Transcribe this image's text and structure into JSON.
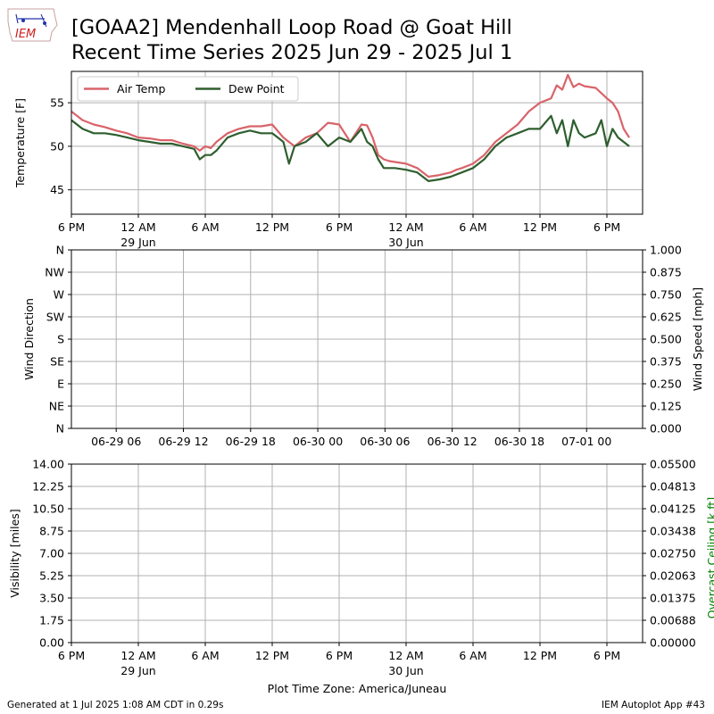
{
  "header": {
    "logo_text": "IEM",
    "title_line1": "[GOAA2] Mendenhall Loop Road @ Goat Hill",
    "title_line2": "Recent Time Series 2025 Jun 29 - 2025 Jul 1"
  },
  "footer": {
    "left": "Generated at 1 Jul 2025 1:08 AM CDT in 0.29s",
    "right": "IEM Autoplot App #43"
  },
  "colors": {
    "air_temp": "#d9636a",
    "dew_point": "#2e5e2e",
    "grid": "#b0b0b0",
    "ceiling_label": "#008000"
  },
  "chart_data": [
    {
      "type": "line",
      "ylabel": "Temperature [F]",
      "ylim": [
        42.2,
        58.6
      ],
      "yticks": [
        "45",
        "50",
        "55"
      ],
      "ytick_values": [
        45,
        50,
        55
      ],
      "x_start": "2025-06-28 18:00",
      "x_end": "2025-07-01 02:00",
      "xticks": [
        {
          "hour": 0,
          "label": "6 PM",
          "sub": ""
        },
        {
          "hour": 6,
          "label": "12 AM",
          "sub": "29 Jun"
        },
        {
          "hour": 12,
          "label": "6 AM",
          "sub": ""
        },
        {
          "hour": 18,
          "label": "12 PM",
          "sub": ""
        },
        {
          "hour": 24,
          "label": "6 PM",
          "sub": ""
        },
        {
          "hour": 30,
          "label": "12 AM",
          "sub": "30 Jun"
        },
        {
          "hour": 36,
          "label": "6 AM",
          "sub": ""
        },
        {
          "hour": 42,
          "label": "12 PM",
          "sub": ""
        },
        {
          "hour": 48,
          "label": "6 PM",
          "sub": ""
        }
      ],
      "grid": true,
      "legend_position": "top-left",
      "series": [
        {
          "name": "Air Temp",
          "color": "#d9636a",
          "x": [
            0,
            1,
            2,
            3,
            4,
            5,
            6,
            7,
            8,
            9,
            10,
            11,
            11.5,
            12,
            12.5,
            13,
            14,
            15,
            16,
            17,
            18,
            19,
            20,
            21,
            22,
            23,
            23.5,
            24,
            25,
            26,
            26.5,
            27,
            27.5,
            28,
            28.5,
            29,
            30,
            31,
            32,
            33,
            34,
            34.5,
            35,
            36,
            37,
            38,
            39,
            40,
            41,
            42,
            43,
            43.5,
            44,
            44.5,
            45,
            45.5,
            46,
            47,
            48,
            48.5,
            49,
            49.5,
            50
          ],
          "y": [
            54.0,
            53.0,
            52.5,
            52.2,
            51.8,
            51.5,
            51.0,
            50.9,
            50.7,
            50.7,
            50.3,
            50.0,
            49.5,
            50.0,
            49.8,
            50.5,
            51.5,
            52.0,
            52.3,
            52.3,
            52.5,
            51.0,
            50.0,
            51.0,
            51.5,
            52.7,
            52.6,
            52.5,
            50.5,
            52.5,
            52.4,
            51.0,
            49.0,
            48.5,
            48.3,
            48.2,
            48.0,
            47.5,
            46.5,
            46.7,
            47.0,
            47.3,
            47.5,
            48.0,
            49.0,
            50.5,
            51.5,
            52.5,
            54.0,
            55.0,
            55.5,
            57.0,
            56.5,
            58.2,
            56.8,
            57.2,
            56.9,
            56.7,
            55.5,
            55.0,
            54.0,
            52.0,
            51.0
          ]
        },
        {
          "name": "Dew Point",
          "color": "#2e5e2e",
          "x": [
            0,
            1,
            2,
            3,
            4,
            5,
            6,
            7,
            8,
            9,
            10,
            11,
            11.5,
            12,
            12.5,
            13,
            14,
            15,
            16,
            17,
            18,
            19,
            19.5,
            20,
            21,
            22,
            23,
            24,
            25,
            26,
            26.5,
            27,
            27.5,
            28,
            28.5,
            29,
            30,
            31,
            32,
            33,
            34,
            35,
            36,
            37,
            38,
            39,
            40,
            41,
            42,
            43,
            43.5,
            44,
            44.5,
            45,
            45.5,
            46,
            47,
            47.5,
            48,
            48.5,
            49,
            49.5,
            50
          ],
          "y": [
            53.0,
            52.0,
            51.5,
            51.5,
            51.3,
            51.0,
            50.7,
            50.5,
            50.3,
            50.3,
            50.0,
            49.7,
            48.5,
            49.0,
            49.0,
            49.5,
            51.0,
            51.5,
            51.8,
            51.5,
            51.5,
            50.5,
            48.0,
            50.0,
            50.5,
            51.5,
            50.0,
            51.0,
            50.5,
            52.0,
            50.5,
            50.0,
            48.5,
            47.5,
            47.5,
            47.5,
            47.3,
            47.0,
            46.0,
            46.2,
            46.5,
            47.0,
            47.5,
            48.5,
            50.0,
            51.0,
            51.5,
            52.0,
            52.0,
            53.5,
            51.5,
            53.0,
            50.0,
            53.0,
            51.5,
            51.0,
            51.5,
            53.0,
            50.0,
            52.0,
            51.0,
            50.5,
            50.0
          ]
        }
      ]
    },
    {
      "type": "line",
      "ylabel": "Wind Direction",
      "y2label": "Wind Speed [mph]",
      "yticks": [
        "N",
        "NE",
        "E",
        "SE",
        "S",
        "SW",
        "W",
        "NW",
        "N"
      ],
      "y2ticks": [
        "0.000",
        "0.125",
        "0.250",
        "0.375",
        "0.500",
        "0.625",
        "0.750",
        "0.875",
        "1.000"
      ],
      "xticks": [
        "06-29 06",
        "06-29 12",
        "06-29 18",
        "06-30 00",
        "06-30 06",
        "06-30 12",
        "06-30 18",
        "07-01 00"
      ],
      "xtick_hours": [
        12,
        18,
        24,
        30,
        36,
        42,
        48,
        54
      ],
      "x_hours_range": [
        8,
        59
      ],
      "grid": true,
      "series": []
    },
    {
      "type": "line",
      "ylabel": "Visibility [miles]",
      "y2label": "Overcast Ceiling [k ft]",
      "yticks": [
        "0.00",
        "1.75",
        "3.50",
        "5.25",
        "7.00",
        "8.75",
        "10.50",
        "12.25",
        "14.00"
      ],
      "y2ticks": [
        "0.00000",
        "0.00688",
        "0.01375",
        "0.02063",
        "0.02750",
        "0.03438",
        "0.04125",
        "0.04813",
        "0.05500"
      ],
      "xticks": [
        {
          "hour": 0,
          "label": "6 PM",
          "sub": ""
        },
        {
          "hour": 6,
          "label": "12 AM",
          "sub": "29 Jun"
        },
        {
          "hour": 12,
          "label": "6 AM",
          "sub": ""
        },
        {
          "hour": 18,
          "label": "12 PM",
          "sub": ""
        },
        {
          "hour": 24,
          "label": "6 PM",
          "sub": ""
        },
        {
          "hour": 30,
          "label": "12 AM",
          "sub": "30 Jun"
        },
        {
          "hour": 36,
          "label": "6 AM",
          "sub": ""
        },
        {
          "hour": 42,
          "label": "12 PM",
          "sub": ""
        },
        {
          "hour": 48,
          "label": "6 PM",
          "sub": ""
        }
      ],
      "xlabel": "Plot Time Zone: America/Juneau",
      "grid": true,
      "series": []
    }
  ]
}
